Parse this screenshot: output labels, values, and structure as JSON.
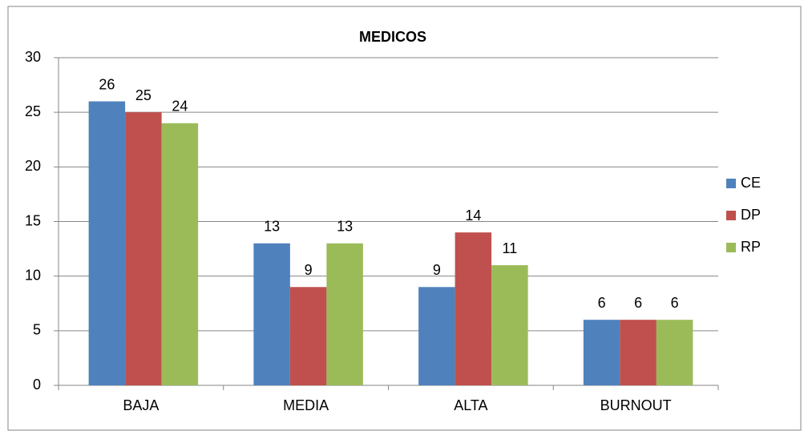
{
  "chart_data": {
    "type": "bar",
    "title": "MEDICOS",
    "categories": [
      "BAJA",
      "MEDIA",
      "ALTA",
      "BURNOUT"
    ],
    "series": [
      {
        "name": "CE",
        "color": "#4f81bd",
        "values": [
          26,
          13,
          9,
          6
        ]
      },
      {
        "name": "DP",
        "color": "#c0504d",
        "values": [
          25,
          9,
          14,
          6
        ]
      },
      {
        "name": "RP",
        "color": "#9bbb59",
        "values": [
          24,
          13,
          11,
          6
        ]
      }
    ],
    "ylim": [
      0,
      30
    ],
    "yticks": [
      0,
      5,
      10,
      15,
      20,
      25,
      30
    ],
    "grid": true,
    "legend": "right"
  }
}
